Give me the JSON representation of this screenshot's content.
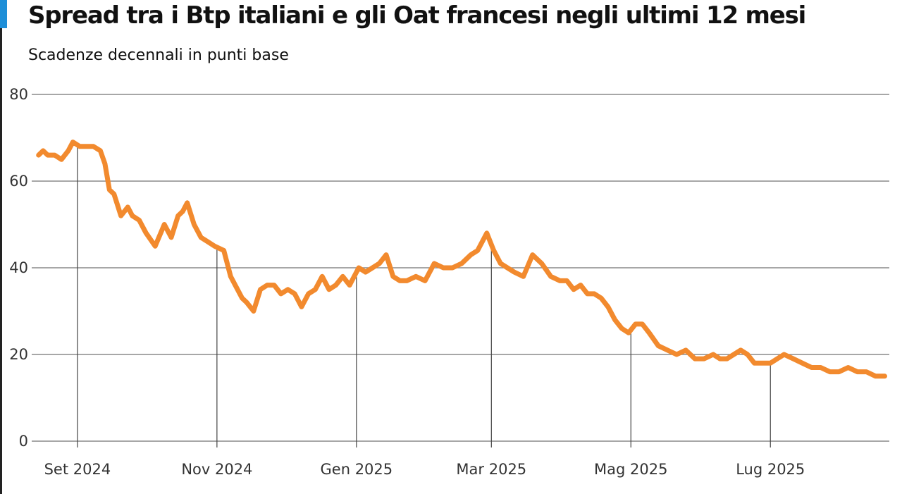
{
  "chart_data": {
    "type": "line",
    "title": "Spread tra i Btp italiani e gli Oat francesi negli ultimi 12 mesi",
    "subtitle": "Scadenze decennali in punti base",
    "xlabel": "",
    "ylabel": "",
    "ylim": [
      0,
      80
    ],
    "yticks": [
      0,
      20,
      40,
      60,
      80
    ],
    "xlim": [
      "2024-08-12",
      "2025-08-22"
    ],
    "xticks": [
      {
        "date": "2024-09-01",
        "label": "Set 2024"
      },
      {
        "date": "2024-11-01",
        "label": "Nov 2024"
      },
      {
        "date": "2025-01-01",
        "label": "Gen 2025"
      },
      {
        "date": "2025-03-01",
        "label": "Mar 2025"
      },
      {
        "date": "2025-05-01",
        "label": "Mag 2025"
      },
      {
        "date": "2025-07-01",
        "label": "Lug 2025"
      }
    ],
    "grid": "horizontal",
    "line_color": "#f28a2e",
    "grid_color": "#8a8a8a",
    "series": [
      {
        "x": [
          "2024-08-15",
          "2024-08-17",
          "2024-08-19",
          "2024-08-22",
          "2024-08-25",
          "2024-08-28",
          "2024-08-30",
          "2024-09-02",
          "2024-09-05",
          "2024-09-08",
          "2024-09-11",
          "2024-09-13",
          "2024-09-15",
          "2024-09-17",
          "2024-09-20",
          "2024-09-23",
          "2024-09-25",
          "2024-09-28",
          "2024-10-01",
          "2024-10-05",
          "2024-10-09",
          "2024-10-12",
          "2024-10-15",
          "2024-10-17",
          "2024-10-19",
          "2024-10-22",
          "2024-10-25",
          "2024-10-28",
          "2024-10-31",
          "2024-11-04",
          "2024-11-07",
          "2024-11-09",
          "2024-11-12",
          "2024-11-14",
          "2024-11-17",
          "2024-11-20",
          "2024-11-23",
          "2024-11-26",
          "2024-11-29",
          "2024-12-02",
          "2024-12-05",
          "2024-12-08",
          "2024-12-11",
          "2024-12-14",
          "2024-12-17",
          "2024-12-20",
          "2024-12-23",
          "2024-12-26",
          "2024-12-29",
          "2025-01-02",
          "2025-01-05",
          "2025-01-08",
          "2025-01-11",
          "2025-01-14",
          "2025-01-17",
          "2025-01-20",
          "2025-01-23",
          "2025-01-27",
          "2025-01-31",
          "2025-02-04",
          "2025-02-08",
          "2025-02-12",
          "2025-02-16",
          "2025-02-20",
          "2025-02-23",
          "2025-02-27",
          "2025-03-02",
          "2025-03-05",
          "2025-03-08",
          "2025-03-11",
          "2025-03-15",
          "2025-03-19",
          "2025-03-23",
          "2025-03-27",
          "2025-03-31",
          "2025-04-03",
          "2025-04-06",
          "2025-04-09",
          "2025-04-12",
          "2025-04-15",
          "2025-04-18",
          "2025-04-21",
          "2025-04-24",
          "2025-04-27",
          "2025-04-30",
          "2025-05-03",
          "2025-05-06",
          "2025-05-09",
          "2025-05-13",
          "2025-05-17",
          "2025-05-21",
          "2025-05-25",
          "2025-05-29",
          "2025-06-02",
          "2025-06-06",
          "2025-06-09",
          "2025-06-12",
          "2025-06-15",
          "2025-06-18",
          "2025-06-21",
          "2025-06-24",
          "2025-06-27",
          "2025-07-01",
          "2025-07-04",
          "2025-07-07",
          "2025-07-11",
          "2025-07-15",
          "2025-07-19",
          "2025-07-23",
          "2025-07-27",
          "2025-07-31",
          "2025-08-04",
          "2025-08-08",
          "2025-08-12",
          "2025-08-16",
          "2025-08-20"
        ],
        "values": [
          66,
          67,
          66,
          66,
          65,
          67,
          69,
          68,
          68,
          68,
          67,
          64,
          58,
          57,
          52,
          54,
          52,
          51,
          48,
          45,
          50,
          47,
          52,
          53,
          55,
          50,
          47,
          46,
          45,
          44,
          38,
          36,
          33,
          32,
          30,
          35,
          36,
          36,
          34,
          35,
          34,
          31,
          34,
          35,
          38,
          35,
          36,
          38,
          36,
          40,
          39,
          40,
          41,
          43,
          38,
          37,
          37,
          38,
          37,
          41,
          40,
          40,
          41,
          43,
          44,
          48,
          44,
          41,
          40,
          39,
          38,
          43,
          41,
          38,
          37,
          37,
          35,
          36,
          34,
          34,
          33,
          31,
          28,
          26,
          25,
          27,
          27,
          25,
          22,
          21,
          20,
          21,
          19,
          19,
          20,
          19,
          19,
          20,
          21,
          20,
          18,
          18,
          18,
          19,
          20,
          19,
          18,
          17,
          17,
          16,
          16,
          17,
          16,
          16,
          15,
          15
        ]
      }
    ]
  }
}
